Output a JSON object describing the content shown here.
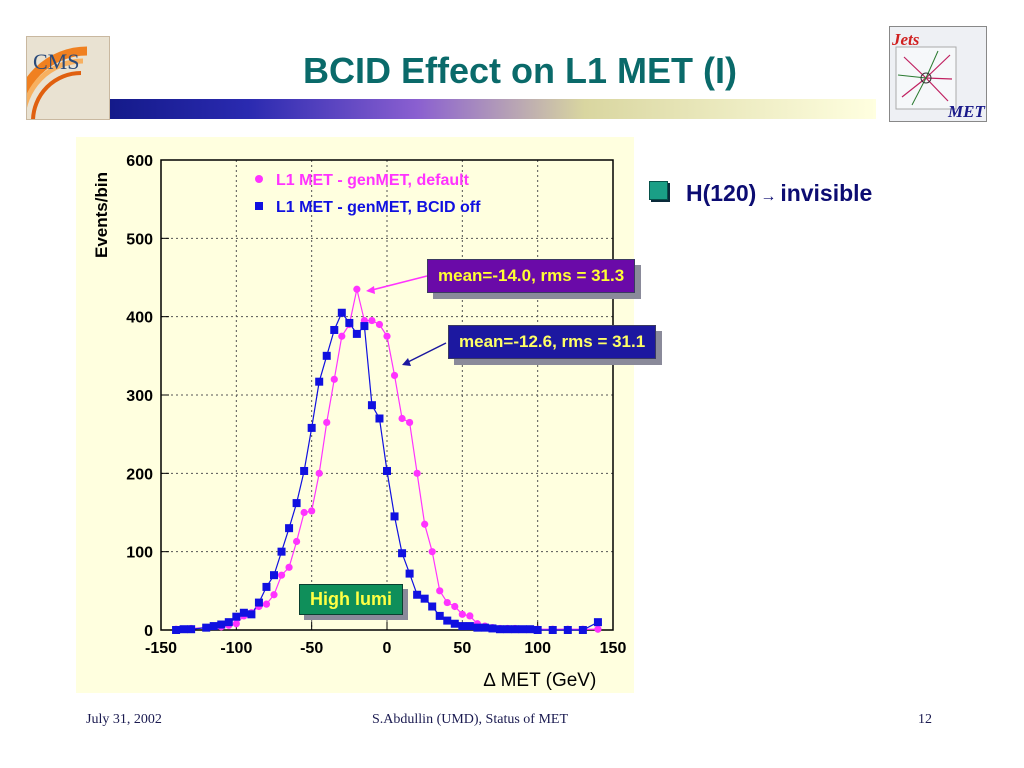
{
  "slide": {
    "title": "BCID Effect on L1 MET (I)",
    "logo_left_text": "CMS",
    "logo_right_top": "Jets",
    "logo_right_bottom": "MET",
    "bullet": {
      "text_pre": "H(120)",
      "arrow": "→",
      "text_post": "invisible"
    },
    "callouts": {
      "default": "mean=-14.0,  rms = 31.3",
      "bcid_off": "mean=-12.6,  rms = 31.1",
      "high_lumi": "High lumi"
    },
    "footer": {
      "date": "July 31, 2002",
      "center": "S.Abdullin (UMD),  Status of MET",
      "page": "12"
    },
    "colors": {
      "title": "#0a6a6a",
      "series_default": "#ff33ff",
      "series_bcid_off": "#1010e0",
      "plot_bg": "#ffffdf"
    }
  },
  "chart_data": {
    "type": "scatter",
    "xlabel": "∆ MET  (GeV)",
    "ylabel": "Events/bin",
    "xlim": [
      -150,
      150
    ],
    "ylim": [
      0,
      600
    ],
    "xticks": [
      -150,
      -100,
      -50,
      0,
      50,
      100,
      150
    ],
    "yticks": [
      0,
      100,
      200,
      300,
      400,
      500,
      600
    ],
    "grid": true,
    "legend_position": "top-left",
    "series": [
      {
        "name": "L1 MET - genMET, default",
        "marker": "circle",
        "color": "#ff33ff",
        "x": [
          -140,
          -130,
          -120,
          -110,
          -105,
          -100,
          -95,
          -90,
          -85,
          -80,
          -75,
          -70,
          -65,
          -60,
          -55,
          -50,
          -45,
          -40,
          -35,
          -30,
          -25,
          -20,
          -15,
          -10,
          -5,
          0,
          5,
          10,
          15,
          20,
          25,
          30,
          35,
          40,
          45,
          50,
          55,
          60,
          65,
          70,
          75,
          80,
          85,
          90,
          100,
          110,
          120,
          130,
          140
        ],
        "y": [
          1,
          2,
          3,
          4,
          6,
          8,
          18,
          22,
          30,
          33,
          45,
          70,
          80,
          113,
          150,
          152,
          200,
          265,
          320,
          375,
          390,
          435,
          395,
          395,
          390,
          375,
          325,
          270,
          265,
          200,
          135,
          100,
          50,
          35,
          30,
          20,
          18,
          8,
          5,
          3,
          2,
          2,
          2,
          1,
          1,
          1,
          1,
          1,
          1
        ]
      },
      {
        "name": "L1 MET - genMET, BCID off",
        "marker": "square",
        "color": "#1010e0",
        "x": [
          -140,
          -135,
          -130,
          -120,
          -115,
          -110,
          -105,
          -100,
          -95,
          -90,
          -85,
          -80,
          -75,
          -70,
          -65,
          -60,
          -55,
          -50,
          -45,
          -40,
          -35,
          -30,
          -25,
          -20,
          -15,
          -10,
          -5,
          0,
          5,
          10,
          15,
          20,
          25,
          30,
          35,
          40,
          45,
          50,
          55,
          60,
          65,
          70,
          75,
          80,
          85,
          90,
          95,
          100,
          110,
          120,
          130,
          140
        ],
        "y": [
          0,
          1,
          1,
          3,
          5,
          7,
          10,
          17,
          22,
          20,
          35,
          55,
          70,
          100,
          130,
          162,
          203,
          258,
          317,
          350,
          383,
          405,
          392,
          378,
          388,
          287,
          270,
          203,
          145,
          98,
          72,
          45,
          40,
          30,
          18,
          12,
          8,
          5,
          5,
          3,
          3,
          2,
          1,
          1,
          1,
          1,
          1,
          0,
          0,
          0,
          0,
          10
        ]
      }
    ]
  }
}
